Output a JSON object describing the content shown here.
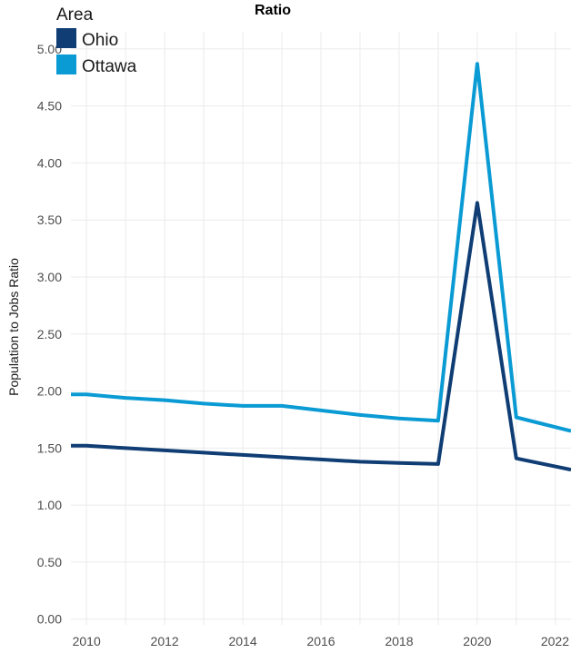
{
  "chart_data": {
    "type": "line",
    "title": "Ratio",
    "xlabel": "",
    "ylabel": "Population to Jobs Ratio",
    "xlim": [
      2009.6,
      2022.4
    ],
    "ylim": [
      -0.05,
      5.15
    ],
    "x_ticks": [
      2010,
      2012,
      2014,
      2016,
      2018,
      2020,
      2022
    ],
    "y_ticks": [
      "0.00",
      "0.50",
      "1.00",
      "1.50",
      "2.00",
      "2.50",
      "3.00",
      "3.50",
      "4.00",
      "4.50",
      "5.00"
    ],
    "grid": true,
    "legend": {
      "title": "Area",
      "placement": "top-left"
    },
    "x": [
      2009.6,
      2010,
      2011,
      2012,
      2013,
      2014,
      2015,
      2016,
      2017,
      2018,
      2019,
      2020,
      2021,
      2022.4
    ],
    "series": [
      {
        "name": "Ohio",
        "color": "#0f3d74",
        "values": [
          1.52,
          1.52,
          1.5,
          1.48,
          1.46,
          1.44,
          1.42,
          1.4,
          1.38,
          1.37,
          1.36,
          3.65,
          1.41,
          1.31
        ]
      },
      {
        "name": "Ottawa",
        "color": "#0b9bd4",
        "values": [
          1.97,
          1.97,
          1.94,
          1.92,
          1.89,
          1.87,
          1.87,
          1.83,
          1.79,
          1.76,
          1.74,
          4.87,
          1.77,
          1.65
        ]
      }
    ]
  }
}
